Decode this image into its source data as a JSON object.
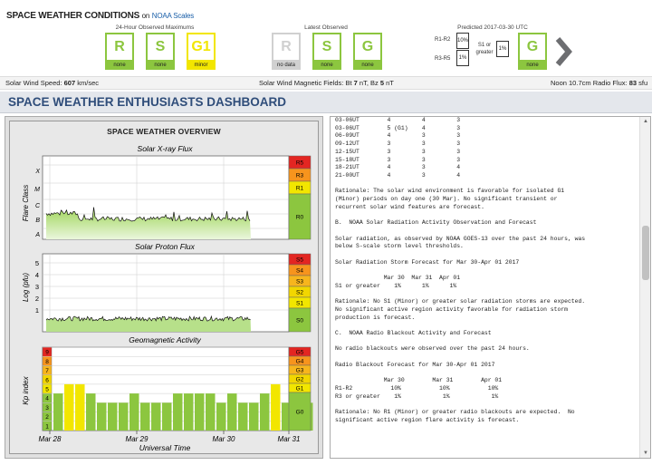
{
  "header": {
    "title": "SPACE WEATHER CONDITIONS",
    "on": "on",
    "link": "NOAA Scales",
    "groups": {
      "max24": "24-Hour Observed Maximums",
      "latest": "Latest Observed",
      "predicted": "Predicted 2017-03-30 UTC"
    },
    "max24_scales": [
      {
        "letter": "R",
        "tag": "none",
        "state": "none"
      },
      {
        "letter": "S",
        "tag": "none",
        "state": "none"
      },
      {
        "letter": "G1",
        "tag": "minor",
        "state": "minor"
      }
    ],
    "latest_scales": [
      {
        "letter": "R",
        "tag": "no data",
        "state": "nodata"
      },
      {
        "letter": "S",
        "tag": "none",
        "state": "none"
      },
      {
        "letter": "G",
        "tag": "none",
        "state": "none"
      }
    ],
    "predicted": {
      "r1r2_label": "R1-R2",
      "r1r2_value": "10%",
      "r3r5_label": "R3-R5",
      "r3r5_value": "1%",
      "s1_label": "S1 or greater",
      "s1_value": "1%",
      "g_letter": "G",
      "g_tag": "none"
    }
  },
  "metrics": {
    "solar_wind_label": "Solar Wind Speed:",
    "solar_wind_value": "607",
    "solar_wind_unit": "km/sec",
    "mag_label": "Solar Wind Magnetic Fields: Bt",
    "bt_value": "7",
    "bt_unit": "nT, Bz",
    "bz_value": "5",
    "bz_unit": "nT",
    "flux_label": "Noon 10.7cm Radio Flux:",
    "flux_value": "83",
    "flux_unit": "sfu"
  },
  "dashboard": {
    "title": "SPACE WEATHER ENTHUSIASTS DASHBOARD"
  },
  "overview": {
    "title": "SPACE WEATHER OVERVIEW",
    "xray": {
      "title": "Solar X-ray Flux",
      "ylabel": "Flare Class",
      "classes": [
        "X",
        "M",
        "C",
        "B",
        "A"
      ],
      "scale": [
        "R5",
        "R3",
        "R1",
        "R0"
      ]
    },
    "proton": {
      "title": "Solar Proton Flux",
      "ylabel": "Log (pfu)",
      "ticks": [
        "5",
        "4",
        "3",
        "2",
        "1"
      ],
      "scale": [
        "S5",
        "S4",
        "S3",
        "S2",
        "S1",
        "S0"
      ]
    },
    "geo": {
      "title": "Geomagnetic Activity",
      "ylabel": "Kp index",
      "ticks": [
        "9",
        "8",
        "7",
        "6",
        "5",
        "4",
        "3",
        "2",
        "1"
      ],
      "scale": [
        "G5",
        "G4",
        "G3",
        "G2",
        "G1",
        "G0"
      ]
    },
    "xaxis": [
      "Mar 28",
      "Mar 29",
      "Mar 30",
      "Mar 31"
    ],
    "xlabel": "Universal Time"
  },
  "chart_data": {
    "type": "bar",
    "title": "Geomagnetic Activity",
    "ylabel": "Kp index",
    "xlabel": "Universal Time",
    "categories": [
      "Mar 28",
      "",
      "",
      "",
      "",
      "",
      "",
      "",
      "Mar 29",
      "",
      "",
      "",
      "",
      "",
      "",
      "",
      "Mar 30",
      "",
      "",
      "",
      "",
      "",
      "",
      ""
    ],
    "values": [
      4,
      5,
      5,
      4,
      3,
      3,
      3,
      4,
      3,
      3,
      3,
      4,
      4,
      4,
      4,
      3,
      4,
      3,
      3,
      4,
      5,
      3,
      3,
      3
    ],
    "ylim": [
      0,
      9
    ]
  },
  "report": {
    "text": "03-06UT        4         4         3\n03-06UT        5 (G1)    4         3\n06-09UT        4         3         3\n09-12UT        3         3         3\n12-15UT        3         3         3\n15-18UT        3         3         3\n18-21UT        4         3         4\n21-00UT        4         3         4\n\nRationale: The solar wind environment is favorable for isolated G1\n(Minor) periods on day one (30 Mar). No significant transient or\nrecurrent solar wind features are forecast.\n\nB.  NOAA Solar Radiation Activity Observation and Forecast\n\nSolar radiation, as observed by NOAA GOES-13 over the past 24 hours, was\nbelow S-scale storm level thresholds.\n\nSolar Radiation Storm Forecast for Mar 30-Apr 01 2017\n\n              Mar 30  Mar 31  Apr 01\nS1 or greater    1%      1%      1%\n\nRationale: No S1 (Minor) or greater solar radiation storms are expected.\nNo significant active region activity favorable for radiation storm\nproduction is forecast.\n\nC.  NOAA Radio Blackout Activity and Forecast\n\nNo radio blackouts were observed over the past 24 hours.\n\nRadio Blackout Forecast for Mar 30-Apr 01 2017\n\n              Mar 30        Mar 31        Apr 01\nR1-R2           10%           10%           10%\nR3 or greater    1%            1%            1%\n\nRationale: No R1 (Minor) or greater radio blackouts are expected.  No\nsignificant active region flare activity is forecast."
  },
  "colors": {
    "green": "#8cc63f",
    "yellow": "#f2e600",
    "dash_title": "#2f4d7a"
  }
}
